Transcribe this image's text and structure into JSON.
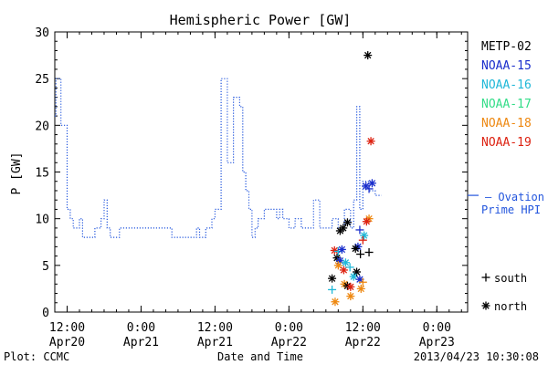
{
  "chart_data": {
    "type": "line",
    "title": "Hemispheric Power [GW]",
    "ylabel": "P [GW]",
    "xlabel": "Date and Time",
    "ylim": [
      0,
      30
    ],
    "yticks": [
      0,
      5,
      10,
      15,
      20,
      25,
      30
    ],
    "xlim_hours": [
      -34,
      33
    ],
    "xticks": [
      {
        "h": -32,
        "time": "12:00",
        "date": "Apr20"
      },
      {
        "h": -20,
        "time": "0:00",
        "date": "Apr21"
      },
      {
        "h": -8,
        "time": "12:00",
        "date": "Apr21"
      },
      {
        "h": 4,
        "time": "0:00",
        "date": "Apr22"
      },
      {
        "h": 16,
        "time": "12:00",
        "date": "Apr22"
      },
      {
        "h": 28,
        "time": "0:00",
        "date": "Apr23"
      }
    ],
    "footer_left": "Plot: CCMC",
    "footer_right": "2013/04/23 10:30:08",
    "ovation": {
      "label": "Ovation Prime HPI",
      "line1": "— Ovation",
      "line2": "Prime HPI",
      "color": "#2255dd",
      "current_value": 12.5,
      "points": [
        [
          -34,
          21
        ],
        [
          -33.8,
          21
        ],
        [
          -33.8,
          25
        ],
        [
          -33,
          25
        ],
        [
          -33,
          20
        ],
        [
          -32,
          20
        ],
        [
          -32,
          11
        ],
        [
          -31.5,
          11
        ],
        [
          -31.5,
          10
        ],
        [
          -31,
          10
        ],
        [
          -31,
          9
        ],
        [
          -30,
          9
        ],
        [
          -30,
          10
        ],
        [
          -29.5,
          10
        ],
        [
          -29.5,
          8
        ],
        [
          -27.5,
          8
        ],
        [
          -27.5,
          9
        ],
        [
          -26.5,
          9
        ],
        [
          -26.5,
          10
        ],
        [
          -26,
          10
        ],
        [
          -26,
          12
        ],
        [
          -25.5,
          12
        ],
        [
          -25.5,
          9
        ],
        [
          -25,
          9
        ],
        [
          -25,
          8
        ],
        [
          -23.5,
          8
        ],
        [
          -23.5,
          9
        ],
        [
          -18,
          9
        ],
        [
          -18,
          9
        ],
        [
          -15,
          9
        ],
        [
          -15,
          8
        ],
        [
          -11,
          8
        ],
        [
          -11,
          9
        ],
        [
          -10.5,
          9
        ],
        [
          -10.5,
          8
        ],
        [
          -9.5,
          8
        ],
        [
          -9.5,
          9
        ],
        [
          -8.5,
          9
        ],
        [
          -8.5,
          10
        ],
        [
          -8,
          10
        ],
        [
          -8,
          11
        ],
        [
          -7,
          11
        ],
        [
          -7,
          25
        ],
        [
          -6,
          25
        ],
        [
          -6,
          16
        ],
        [
          -5,
          16
        ],
        [
          -5,
          23
        ],
        [
          -4,
          23
        ],
        [
          -4,
          22
        ],
        [
          -3.5,
          22
        ],
        [
          -3.5,
          15
        ],
        [
          -3,
          15
        ],
        [
          -3,
          13
        ],
        [
          -2.5,
          13
        ],
        [
          -2.5,
          11
        ],
        [
          -2,
          11
        ],
        [
          -2,
          8
        ],
        [
          -1.5,
          8
        ],
        [
          -1.5,
          9
        ],
        [
          -1,
          9
        ],
        [
          -1,
          10
        ],
        [
          0,
          10
        ],
        [
          0,
          11
        ],
        [
          2,
          11
        ],
        [
          2,
          10
        ],
        [
          2.5,
          10
        ],
        [
          2.5,
          11
        ],
        [
          3,
          11
        ],
        [
          3,
          10
        ],
        [
          4,
          10
        ],
        [
          4,
          9
        ],
        [
          5,
          9
        ],
        [
          5,
          10
        ],
        [
          6,
          10
        ],
        [
          6,
          9
        ],
        [
          8,
          9
        ],
        [
          8,
          12
        ],
        [
          9,
          12
        ],
        [
          9,
          9
        ],
        [
          11,
          9
        ],
        [
          11,
          10
        ],
        [
          12,
          10
        ],
        [
          12,
          9
        ],
        [
          13,
          9
        ],
        [
          13,
          11
        ],
        [
          14,
          11
        ],
        [
          14,
          9
        ],
        [
          14.5,
          9
        ],
        [
          14.5,
          12
        ],
        [
          15,
          12
        ],
        [
          15,
          22
        ],
        [
          15.5,
          22
        ],
        [
          15.5,
          11
        ],
        [
          16,
          11
        ],
        [
          16,
          14
        ],
        [
          17,
          14
        ],
        [
          17,
          13
        ],
        [
          18,
          13
        ],
        [
          18,
          12.5
        ],
        [
          19,
          12.5
        ]
      ]
    },
    "legend_satellites": [
      {
        "name": "METP-02",
        "color": "#000000"
      },
      {
        "name": "NOAA-15",
        "color": "#1a2ecc"
      },
      {
        "name": "NOAA-16",
        "color": "#20b8d8"
      },
      {
        "name": "NOAA-17",
        "color": "#33dd88"
      },
      {
        "name": "NOAA-18",
        "color": "#ee8811"
      },
      {
        "name": "NOAA-19",
        "color": "#dd2211"
      }
    ],
    "legend_markers": [
      {
        "symbol": "+",
        "label": "south"
      },
      {
        "symbol": "*",
        "label": "north"
      }
    ],
    "scatter": [
      {
        "sat": "METP-02",
        "hem": "north",
        "x": 16.8,
        "y": 27.5
      },
      {
        "sat": "NOAA-19",
        "hem": "north",
        "x": 17.3,
        "y": 18.3
      },
      {
        "sat": "NOAA-15",
        "hem": "north",
        "x": 17.5,
        "y": 13.8
      },
      {
        "sat": "NOAA-15",
        "hem": "north",
        "x": 16.5,
        "y": 13.5
      },
      {
        "sat": "NOAA-15",
        "hem": "south",
        "x": 17.0,
        "y": 13.2
      },
      {
        "sat": "NOAA-18",
        "hem": "north",
        "x": 17.0,
        "y": 10.0
      },
      {
        "sat": "NOAA-19",
        "hem": "north",
        "x": 16.6,
        "y": 9.7
      },
      {
        "sat": "METP-02",
        "hem": "north",
        "x": 13.5,
        "y": 9.6
      },
      {
        "sat": "METP-02",
        "hem": "north",
        "x": 12.8,
        "y": 9.0
      },
      {
        "sat": "METP-02",
        "hem": "north",
        "x": 12.3,
        "y": 8.7
      },
      {
        "sat": "NOAA-15",
        "hem": "south",
        "x": 15.5,
        "y": 8.8
      },
      {
        "sat": "NOAA-16",
        "hem": "north",
        "x": 16.2,
        "y": 8.2
      },
      {
        "sat": "NOAA-19",
        "hem": "south",
        "x": 16.0,
        "y": 7.7
      },
      {
        "sat": "NOAA-15",
        "hem": "north",
        "x": 15.2,
        "y": 7.0
      },
      {
        "sat": "METP-02",
        "hem": "north",
        "x": 14.8,
        "y": 6.8
      },
      {
        "sat": "METP-02",
        "hem": "south",
        "x": 17.0,
        "y": 6.4
      },
      {
        "sat": "METP-02",
        "hem": "south",
        "x": 15.6,
        "y": 6.2
      },
      {
        "sat": "NOAA-19",
        "hem": "north",
        "x": 11.4,
        "y": 6.6
      },
      {
        "sat": "NOAA-16",
        "hem": "south",
        "x": 12.0,
        "y": 6.5
      },
      {
        "sat": "NOAA-15",
        "hem": "north",
        "x": 12.6,
        "y": 6.7
      },
      {
        "sat": "METP-02",
        "hem": "north",
        "x": 11.8,
        "y": 5.8
      },
      {
        "sat": "NOAA-15",
        "hem": "north",
        "x": 12.3,
        "y": 5.5
      },
      {
        "sat": "NOAA-16",
        "hem": "north",
        "x": 13.2,
        "y": 5.3
      },
      {
        "sat": "NOAA-18",
        "hem": "north",
        "x": 12.0,
        "y": 5.0
      },
      {
        "sat": "NOAA-19",
        "hem": "north",
        "x": 12.9,
        "y": 4.5
      },
      {
        "sat": "NOAA-16",
        "hem": "south",
        "x": 13.9,
        "y": 4.8
      },
      {
        "sat": "METP-02",
        "hem": "north",
        "x": 15.0,
        "y": 4.3
      },
      {
        "sat": "NOAA-16",
        "hem": "north",
        "x": 14.5,
        "y": 3.8
      },
      {
        "sat": "NOAA-15",
        "hem": "north",
        "x": 15.5,
        "y": 3.5
      },
      {
        "sat": "NOAA-18",
        "hem": "north",
        "x": 13.0,
        "y": 3.0
      },
      {
        "sat": "METP-02",
        "hem": "north",
        "x": 11.0,
        "y": 3.6
      },
      {
        "sat": "NOAA-16",
        "hem": "south",
        "x": 11.0,
        "y": 2.4
      },
      {
        "sat": "NOAA-18",
        "hem": "south",
        "x": 16.0,
        "y": 3.2
      },
      {
        "sat": "NOAA-18",
        "hem": "north",
        "x": 15.7,
        "y": 2.5
      },
      {
        "sat": "METP-02",
        "hem": "north",
        "x": 13.5,
        "y": 2.8
      },
      {
        "sat": "NOAA-18",
        "hem": "north",
        "x": 14.0,
        "y": 1.7
      },
      {
        "sat": "NOAA-18",
        "hem": "north",
        "x": 11.5,
        "y": 1.1
      },
      {
        "sat": "NOAA-19",
        "hem": "north",
        "x": 14.0,
        "y": 2.7
      }
    ]
  }
}
